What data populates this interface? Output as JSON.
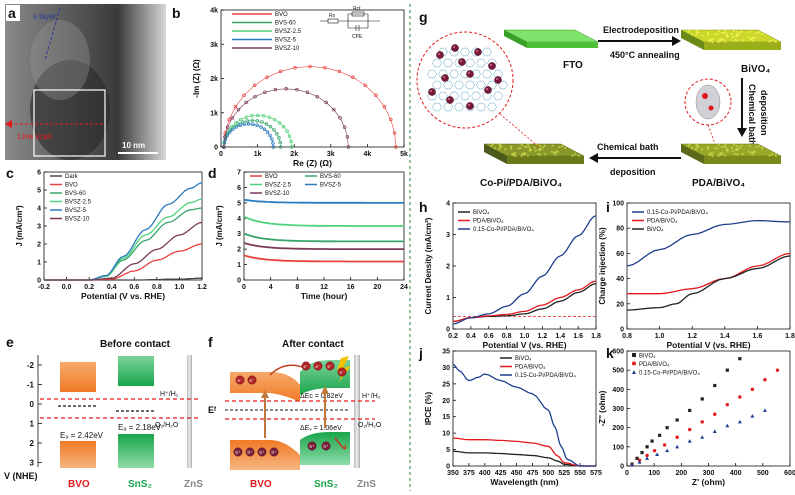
{
  "panel_labels": {
    "a": "a",
    "b": "b",
    "c": "c",
    "d": "d",
    "e": "e",
    "f": "f",
    "g": "g",
    "h": "h",
    "i": "i",
    "j": "j",
    "k": "k"
  },
  "tem": {
    "layer_text": "s layer",
    "scan_text": "Line scan",
    "scale_text": "10 nm"
  },
  "colors": {
    "bvo": "#e8413c",
    "bvs60": "#39a56b",
    "bvsz25": "#4fd27a",
    "bvsz5": "#2a7bbf",
    "bvsz10": "#7a3b5a",
    "dark": "#444444",
    "black": "#222222",
    "red": "#e31a1c",
    "blue": "#1f3e8f",
    "bvo_orange": "#f07a26",
    "sns2_green": "#1aa54a",
    "zns_gray": "#999999",
    "dash_red": "#e31a1c"
  },
  "chart_data": [
    {
      "id": "b",
      "type": "line",
      "xlabel": "Re (Z) (Ω)",
      "ylabel": "-Im (Z) (Ω)",
      "xlim": [
        0,
        5000
      ],
      "ylim": [
        0,
        4000
      ],
      "xticks": [
        "0",
        "1k",
        "2k",
        "3k",
        "4k",
        "5k"
      ],
      "yticks": [
        "0",
        "1k",
        "2k",
        "3k",
        "4k"
      ],
      "circuit_labels": {
        "rs": "Rs",
        "rct": "Rct",
        "cpe": "CPE"
      },
      "series": [
        {
          "name": "BVO",
          "diameter": 4700,
          "color_key": "bvo"
        },
        {
          "name": "BVS-60",
          "diameter": 1550,
          "color_key": "bvs60"
        },
        {
          "name": "BVSZ-2.5",
          "diameter": 1850,
          "color_key": "bvsz25"
        },
        {
          "name": "BVSZ-5",
          "diameter": 1350,
          "color_key": "bvsz5"
        },
        {
          "name": "BVSZ-10",
          "diameter": 3400,
          "color_key": "bvsz10"
        }
      ]
    },
    {
      "id": "c",
      "type": "line",
      "xlabel": "Potential (V vs. RHE)",
      "ylabel": "J (mA/cm²)",
      "xlim": [
        -0.2,
        1.2
      ],
      "ylim": [
        0,
        6
      ],
      "xticks": [
        "-0.2",
        "0.0",
        "0.2",
        "0.4",
        "0.6",
        "0.8",
        "1.0",
        "1.2"
      ],
      "yticks": [
        "0",
        "1",
        "2",
        "3",
        "4",
        "5",
        "6"
      ],
      "series": [
        {
          "name": "Dark",
          "color_key": "dark",
          "x": [
            -0.2,
            0.2,
            0.6,
            1.0,
            1.2
          ],
          "y": [
            0,
            0,
            0,
            0.05,
            0.1
          ]
        },
        {
          "name": "BVO",
          "color_key": "bvo",
          "x": [
            -0.2,
            0.2,
            0.4,
            0.6,
            0.8,
            1.0,
            1.2
          ],
          "y": [
            0,
            0,
            0.05,
            0.5,
            1.1,
            1.6,
            2.0
          ]
        },
        {
          "name": "BVS-60",
          "color_key": "bvs60",
          "x": [
            -0.2,
            0.2,
            0.35,
            0.5,
            0.7,
            0.9,
            1.1,
            1.2
          ],
          "y": [
            0,
            0,
            0.2,
            1.1,
            2.2,
            3.2,
            3.9,
            4.0
          ]
        },
        {
          "name": "BVSZ-2.5",
          "color_key": "bvsz25",
          "x": [
            -0.2,
            0.2,
            0.35,
            0.5,
            0.7,
            0.9,
            1.1,
            1.2
          ],
          "y": [
            0,
            0,
            0.2,
            1.2,
            2.5,
            3.5,
            4.3,
            4.5
          ]
        },
        {
          "name": "BVSZ-5",
          "color_key": "bvsz5",
          "x": [
            -0.2,
            0.2,
            0.35,
            0.5,
            0.7,
            0.9,
            1.1,
            1.2
          ],
          "y": [
            0,
            0,
            0.25,
            1.3,
            2.8,
            4.2,
            5.1,
            5.4
          ]
        },
        {
          "name": "BVSZ-10",
          "color_key": "bvsz10",
          "x": [
            -0.2,
            0.2,
            0.4,
            0.6,
            0.8,
            1.0,
            1.2
          ],
          "y": [
            0,
            0,
            0.1,
            0.9,
            1.7,
            2.5,
            3.2
          ]
        }
      ]
    },
    {
      "id": "d",
      "type": "line",
      "xlabel": "Time (hour)",
      "ylabel": "J (mA/cm²)",
      "xlim": [
        0,
        24
      ],
      "ylim": [
        0,
        7
      ],
      "xticks": [
        "0",
        "4",
        "8",
        "12",
        "16",
        "20",
        "24"
      ],
      "yticks": [
        "0",
        "1",
        "2",
        "3",
        "4",
        "5",
        "6",
        "7"
      ],
      "series": [
        {
          "name": "BVO",
          "color_key": "bvo",
          "start": 1.6,
          "end": 1.2
        },
        {
          "name": "BVS-60",
          "color_key": "bvs60",
          "start": 3.0,
          "end": 2.5
        },
        {
          "name": "BVSZ-2.5",
          "color_key": "bvsz25",
          "start": 4.1,
          "end": 3.5
        },
        {
          "name": "BVSZ-5",
          "color_key": "bvsz5",
          "start": 5.2,
          "end": 5.0
        },
        {
          "name": "BVSZ-10",
          "color_key": "bvsz10",
          "start": 2.4,
          "end": 2.0
        }
      ]
    },
    {
      "id": "h",
      "type": "line",
      "xlabel": "Potential V (vs. RHE)",
      "ylabel": "Current Density (mA/cm²)",
      "xlim": [
        0.2,
        1.8
      ],
      "ylim": [
        -0.5,
        4.5
      ],
      "xticks": [
        "0.2",
        "0.4",
        "0.6",
        "0.8",
        "1.0",
        "1.2",
        "1.4",
        "1.6",
        "1.8"
      ],
      "yticks": [
        "0",
        "1",
        "2",
        "3",
        "4"
      ],
      "series": [
        {
          "name": "BiVO₄",
          "color_key": "black",
          "x": [
            0.2,
            0.4,
            0.6,
            0.8,
            1.0,
            1.2,
            1.4,
            1.6,
            1.8
          ],
          "y": [
            -0.2,
            -0.05,
            0.0,
            0.02,
            0.1,
            0.3,
            0.6,
            0.95,
            1.3
          ]
        },
        {
          "name": "PDA/BiVO₄",
          "color_key": "red",
          "x": [
            0.2,
            0.4,
            0.6,
            0.8,
            1.0,
            1.2,
            1.4,
            1.6,
            1.8
          ],
          "y": [
            -0.2,
            -0.05,
            0.02,
            0.08,
            0.2,
            0.45,
            0.75,
            1.05,
            1.4
          ]
        },
        {
          "name": "0.15-Co-Pi/PDA/BiVO₄",
          "color_key": "blue",
          "x": [
            0.2,
            0.4,
            0.6,
            0.8,
            1.0,
            1.2,
            1.4,
            1.6,
            1.8
          ],
          "y": [
            -0.3,
            -0.05,
            0.1,
            0.4,
            0.9,
            1.6,
            2.4,
            3.2,
            4.0
          ]
        }
      ]
    },
    {
      "id": "i",
      "type": "line",
      "xlabel": "Potential V (vs. RHE)",
      "ylabel": "Charge injection (%)",
      "xlim": [
        0.8,
        1.8
      ],
      "ylim": [
        0,
        100
      ],
      "xticks": [
        "0.8",
        "1.0",
        "1.2",
        "1.4",
        "1.6",
        "1.8"
      ],
      "yticks": [
        "0",
        "20",
        "40",
        "60",
        "80",
        "100"
      ],
      "series": [
        {
          "name": "0.15-Co-Pi/PDA/BiVO₄",
          "color_key": "blue",
          "x": [
            0.8,
            1.0,
            1.2,
            1.4,
            1.6,
            1.8
          ],
          "y": [
            50,
            63,
            75,
            83,
            86,
            85
          ]
        },
        {
          "name": "PDA/BiVO₄",
          "color_key": "red",
          "x": [
            0.8,
            1.0,
            1.2,
            1.4,
            1.6,
            1.8
          ],
          "y": [
            28,
            28,
            32,
            40,
            50,
            60
          ]
        },
        {
          "name": "BiVO₄",
          "color_key": "black",
          "x": [
            0.8,
            1.0,
            1.1,
            1.2,
            1.4,
            1.6,
            1.8
          ],
          "y": [
            15,
            17,
            20,
            28,
            40,
            48,
            58
          ]
        }
      ]
    },
    {
      "id": "j",
      "type": "line",
      "xlabel": "Wavelength (nm)",
      "ylabel": "IPCE (%)",
      "xlim": [
        350,
        575
      ],
      "ylim": [
        0,
        35
      ],
      "xticks": [
        "350",
        "375",
        "400",
        "425",
        "450",
        "475",
        "500",
        "525",
        "550",
        "575"
      ],
      "yticks": [
        "0",
        "5",
        "10",
        "15",
        "20",
        "25",
        "30",
        "35"
      ],
      "series": [
        {
          "name": "BiVO₄",
          "color_key": "black",
          "x": [
            350,
            375,
            400,
            425,
            450,
            475,
            500,
            515,
            525,
            550,
            575
          ],
          "y": [
            4.5,
            4,
            4,
            3.8,
            3.5,
            3.2,
            2.5,
            1.5,
            0.5,
            0,
            0
          ]
        },
        {
          "name": "PDA/BiVO₄",
          "color_key": "red",
          "x": [
            350,
            375,
            400,
            425,
            450,
            475,
            500,
            515,
            525,
            550,
            575
          ],
          "y": [
            8.5,
            8,
            8,
            7.8,
            7.5,
            7,
            6,
            3,
            1,
            0,
            0
          ]
        },
        {
          "name": "0.15-Co-Pi/PDA/BiVO₄",
          "color_key": "blue",
          "x": [
            350,
            360,
            375,
            390,
            400,
            425,
            450,
            475,
            500,
            510,
            520,
            530,
            550,
            575
          ],
          "y": [
            31,
            29,
            26,
            27,
            28,
            26,
            24,
            22,
            17,
            12,
            6,
            2,
            0,
            0
          ]
        }
      ]
    },
    {
      "id": "k",
      "type": "scatter",
      "xlabel": "Z' (ohm)",
      "ylabel": "-Z'' (ohm)",
      "xlim": [
        0,
        650
      ],
      "ylim": [
        0,
        600
      ],
      "xticks": [
        "0",
        "100",
        "200",
        "300",
        "400",
        "500",
        "600"
      ],
      "yticks": [
        "0",
        "100",
        "200",
        "300",
        "400",
        "500",
        "600"
      ],
      "series": [
        {
          "name": "BiVO₄",
          "marker": "square",
          "color_key": "black",
          "x": [
            20,
            40,
            60,
            80,
            100,
            130,
            160,
            200,
            250,
            300,
            350,
            400,
            450
          ],
          "y": [
            10,
            40,
            70,
            100,
            130,
            160,
            200,
            240,
            290,
            350,
            420,
            500,
            560
          ]
        },
        {
          "name": "PDA/BiVO₄",
          "marker": "circle",
          "color_key": "red",
          "x": [
            20,
            50,
            80,
            110,
            150,
            200,
            250,
            300,
            350,
            400,
            450,
            500,
            550,
            600
          ],
          "y": [
            5,
            30,
            55,
            80,
            110,
            150,
            190,
            230,
            270,
            320,
            360,
            400,
            450,
            500
          ]
        },
        {
          "name": "0.15-Co-Pi/PDA/BiVO₄",
          "marker": "triangle",
          "color_key": "blue",
          "x": [
            20,
            50,
            80,
            120,
            160,
            200,
            250,
            300,
            350,
            400,
            450,
            500,
            550
          ],
          "y": [
            5,
            20,
            40,
            60,
            80,
            100,
            130,
            150,
            180,
            210,
            230,
            260,
            290
          ]
        }
      ]
    }
  ],
  "legends": {
    "b": [
      "BVO",
      "BVS-60",
      "BVSZ-2.5",
      "BVSZ-5",
      "BVSZ-10"
    ],
    "c": [
      "Dark",
      "BVO",
      "BVS-60",
      "BVSZ-2.5",
      "BVSZ-5",
      "BVSZ-10"
    ],
    "d": [
      "BVO",
      "BVS-60",
      "BVSZ-2.5",
      "BVSZ-5",
      "BVSZ-10"
    ],
    "h": [
      "BiVO₄",
      "PDA/BiVO₄",
      "0.15-Co-Pi/PDA/BiVO₄"
    ],
    "i": [
      "0.15-Co-Pi/PDA/BiVO₄",
      "PDA/BiVO₄",
      "BiVO₄"
    ],
    "j": [
      "BiVO₄",
      "PDA/BiVO₄",
      "0.15-Co-Pi/PDA/BiVO₄"
    ],
    "k": [
      "BiVO₄",
      "PDA/BiVO₄",
      "0.15-Co-Pi/PDA/BiVO₄"
    ]
  },
  "band_e": {
    "title": "Before contact",
    "ylabel": "V (NHE)",
    "yticks": [
      "-2",
      "-1",
      "0",
      "1",
      "2",
      "3"
    ],
    "h_label": "H⁺/H₂",
    "o_label": "O₂/H₂O",
    "eg_bvo": "E₉ = 2.42eV",
    "eg_sns": "E₉ = 2.18eV",
    "mat1": "BVO",
    "mat2": "SnS₂",
    "mat3": "ZnS"
  },
  "band_f": {
    "title": "After contact",
    "ef": "Eᶠ",
    "dec": "ΔEᴄ = 0.82eV",
    "dev": "ΔEᵥ = 1.06eV",
    "h_label": "H⁺/H₂",
    "o_label": "O₂/H₂O",
    "mat1": "BVO",
    "mat2": "SnS₂",
    "mat3": "ZnS",
    "e_sym": "e⁻",
    "h_sym": "h⁺"
  },
  "scheme_g": {
    "fto": "FTO",
    "step1a": "Electrodeposition",
    "step1b": "450°C annealing",
    "bivo4": "BiVO₄",
    "step2a": "Chemical bath",
    "step2b": "deposition",
    "pda": "PDA/BiVO₄",
    "step3a": "Chemical bath",
    "step3b": "deposition",
    "copi": "Co-Pi/PDA/BiVO₄"
  }
}
